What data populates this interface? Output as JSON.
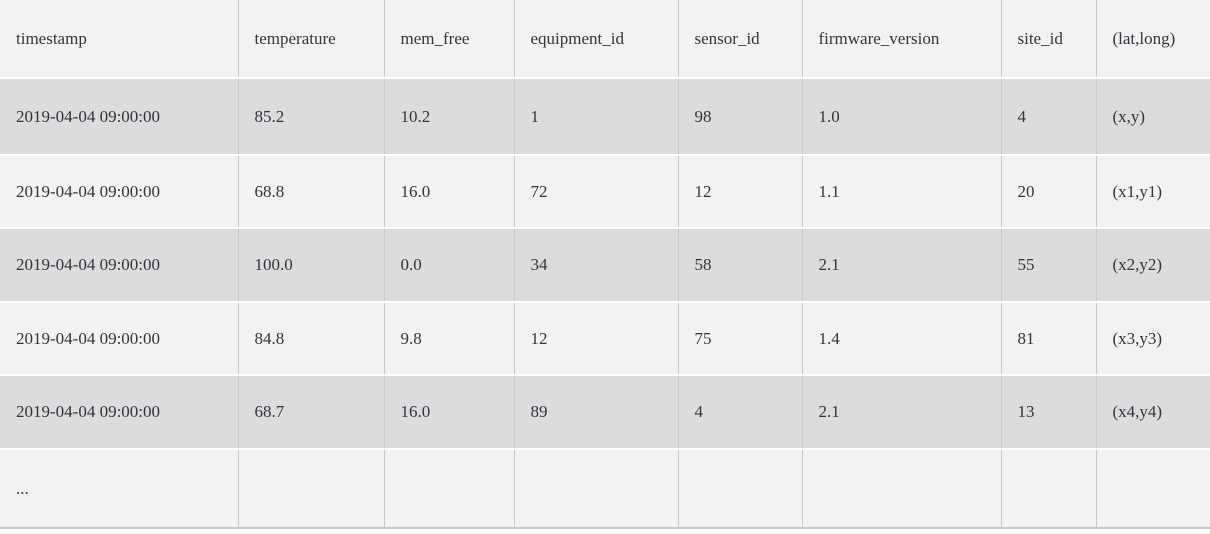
{
  "table": {
    "headers": [
      "timestamp",
      "temperature",
      "mem_free",
      "equipment_id",
      "sensor_id",
      "firmware_version",
      "site_id",
      "(lat,long)"
    ],
    "rows": [
      [
        "2019-04-04 09:00:00",
        "85.2",
        "10.2",
        "1",
        "98",
        "1.0",
        "4",
        "(x,y)"
      ],
      [
        "2019-04-04 09:00:00",
        "68.8",
        "16.0",
        "72",
        "12",
        "1.1",
        "20",
        "(x1,y1)"
      ],
      [
        "2019-04-04 09:00:00",
        "100.0",
        "0.0",
        "34",
        "58",
        "2.1",
        "55",
        "(x2,y2)"
      ],
      [
        "2019-04-04 09:00:00",
        "84.8",
        "9.8",
        "12",
        "75",
        "1.4",
        "81",
        "(x3,y3)"
      ],
      [
        "2019-04-04 09:00:00",
        "68.7",
        "16.0",
        "89",
        "4",
        "2.1",
        "13",
        "(x4,y4)"
      ]
    ],
    "ellipsis": "...",
    "colors": {
      "header_bg": "#f2f2f2",
      "row_stripe_dark": "#dcdcdc",
      "row_stripe_light": "#f2f2f2",
      "grid_line": "#c8c8c8",
      "row_separator": "#ffffff",
      "text": "#33333d"
    }
  }
}
